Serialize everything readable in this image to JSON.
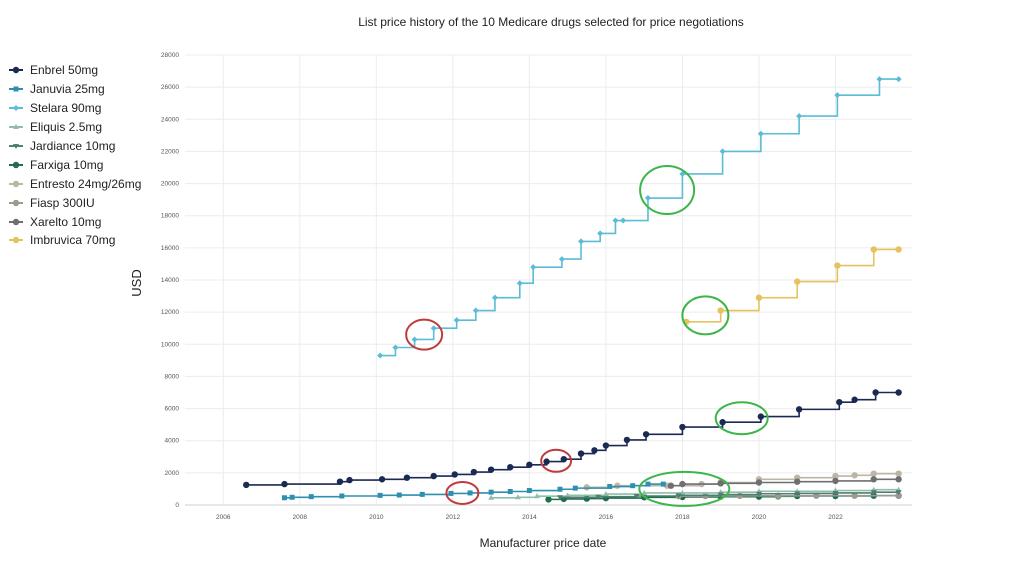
{
  "chart_data": {
    "type": "line",
    "step": "after",
    "title": "List price history of the 10 Medicare drugs selected for price negotiations",
    "xlabel": "Manufacturer price date",
    "ylabel": "USD",
    "xlim": [
      2005,
      2024
    ],
    "ylim": [
      0,
      28000
    ],
    "xticks": [
      "2006",
      "2008",
      "2010",
      "2012",
      "2014",
      "2016",
      "2018",
      "2020",
      "2022"
    ],
    "yticks": [
      "0",
      "2000",
      "4000",
      "6000",
      "8000",
      "10000",
      "12000",
      "14000",
      "16000",
      "18000",
      "20000",
      "22000",
      "24000",
      "26000",
      "28000"
    ],
    "grid": true,
    "legend_position": "left",
    "series": [
      {
        "name": "Enbrel 50mg",
        "color": "#1b2a52",
        "marker": "circle",
        "x": [
          2006.6,
          2007.6,
          2009.05,
          2009.3,
          2010.15,
          2010.8,
          2011.5,
          2012.05,
          2012.55,
          2013.0,
          2013.5,
          2014.0,
          2014.45,
          2014.9,
          2015.35,
          2015.7,
          2016.0,
          2016.55,
          2017.05,
          2018.0,
          2019.05,
          2020.05,
          2021.05,
          2022.1,
          2022.5,
          2023.05,
          2023.65
        ],
        "y": [
          1250,
          1300,
          1450,
          1550,
          1600,
          1700,
          1800,
          1900,
          2050,
          2200,
          2350,
          2500,
          2700,
          2850,
          3200,
          3400,
          3700,
          4050,
          4400,
          4850,
          5150,
          5500,
          5950,
          6400,
          6550,
          7000,
          7000
        ]
      },
      {
        "name": "Januvia 25mg",
        "color": "#2f8fb0",
        "marker": "square",
        "x": [
          2007.6,
          2007.8,
          2008.3,
          2009.1,
          2010.1,
          2010.6,
          2011.2,
          2011.95,
          2012.45,
          2013.0,
          2013.5,
          2014.0,
          2014.8,
          2015.2,
          2016.1,
          2016.7,
          2017.1,
          2017.5
        ],
        "y": [
          450,
          480,
          520,
          560,
          600,
          620,
          660,
          720,
          750,
          800,
          840,
          900,
          980,
          1050,
          1150,
          1200,
          1300,
          1300
        ]
      },
      {
        "name": "Stelara 90mg",
        "color": "#5bbcd6",
        "marker": "diamond",
        "x": [
          2010.1,
          2010.5,
          2011.0,
          2011.5,
          2012.1,
          2012.6,
          2013.1,
          2013.75,
          2014.1,
          2014.85,
          2015.35,
          2015.85,
          2016.25,
          2016.45,
          2017.1,
          2018.0,
          2019.05,
          2020.05,
          2021.05,
          2022.05,
          2023.15,
          2023.65
        ],
        "y": [
          9300,
          9800,
          10300,
          11000,
          11500,
          12100,
          12900,
          13800,
          14800,
          15300,
          16400,
          16900,
          17700,
          17700,
          19100,
          20600,
          22000,
          23100,
          24200,
          25500,
          26500,
          26500
        ]
      },
      {
        "name": "Eliquis 2.5mg",
        "color": "#8fbfa8",
        "marker": "triangle",
        "x": [
          2013.0,
          2013.7,
          2014.2,
          2015.0,
          2016.0,
          2017.0,
          2018.0,
          2019.0,
          2020.0,
          2021.0,
          2022.0,
          2023.0,
          2023.65
        ],
        "y": [
          450,
          480,
          550,
          600,
          680,
          750,
          750,
          800,
          850,
          850,
          900,
          950,
          950
        ]
      },
      {
        "name": "Jardiance 10mg",
        "color": "#4f7f72",
        "marker": "triangle-down",
        "x": [
          2014.8,
          2015.8,
          2016.8,
          2017.9,
          2019.0,
          2020.0,
          2021.0,
          2022.0,
          2023.0,
          2023.65
        ],
        "y": [
          480,
          520,
          560,
          600,
          650,
          700,
          720,
          750,
          800,
          800
        ]
      },
      {
        "name": "Farxiga 10mg",
        "color": "#1e6e4e",
        "marker": "circle",
        "x": [
          2014.5,
          2014.9,
          2015.5,
          2016.0,
          2017.0,
          2018.0,
          2019.0,
          2020.0,
          2020.5,
          2021.0,
          2022.0,
          2023.0,
          2023.65
        ],
        "y": [
          350,
          380,
          400,
          430,
          480,
          500,
          520,
          520,
          540,
          560,
          560,
          580,
          580
        ]
      },
      {
        "name": "Entresto 24mg/26mg",
        "color": "#bdb5a6",
        "marker": "circle",
        "x": [
          2015.5,
          2016.3,
          2017.6,
          2018.5,
          2019.0,
          2020.0,
          2021.0,
          2022.0,
          2022.5,
          2023.0,
          2023.65
        ],
        "y": [
          1100,
          1200,
          1200,
          1300,
          1400,
          1600,
          1700,
          1800,
          1850,
          1950,
          1950
        ]
      },
      {
        "name": "Fiasp 300IU",
        "color": "#9a9a8e",
        "marker": "circle",
        "x": [
          2017.9,
          2018.6,
          2019.5,
          2020.5,
          2021.5,
          2022.5,
          2023.65
        ],
        "y": [
          550,
          560,
          570,
          570,
          580,
          580,
          580
        ]
      },
      {
        "name": "Xarelto 10mg",
        "color": "#6f6f6f",
        "marker": "circle",
        "x": [
          2017.7,
          2018.0,
          2019.0,
          2020.0,
          2021.0,
          2022.0,
          2023.0,
          2023.65
        ],
        "y": [
          1200,
          1300,
          1350,
          1400,
          1450,
          1500,
          1600,
          1600
        ]
      },
      {
        "name": "Imbruvica 70mg",
        "color": "#e6c25e",
        "marker": "circle",
        "x": [
          2018.1,
          2019.0,
          2020.0,
          2021.0,
          2022.05,
          2023.0,
          2023.65
        ],
        "y": [
          11400,
          12100,
          12900,
          13900,
          14900,
          15900,
          15900
        ]
      }
    ],
    "annotations": [
      {
        "shape": "ellipse",
        "color": "#c0393b",
        "x": 2011.25,
        "y": 10600
      },
      {
        "shape": "ellipse",
        "color": "#c0393b",
        "x": 2012.25,
        "y": 750
      },
      {
        "shape": "ellipse",
        "color": "#c0393b",
        "x": 2014.7,
        "y": 2750
      },
      {
        "shape": "ellipse",
        "color": "#3cb54a",
        "x": 2017.6,
        "y": 19600
      },
      {
        "shape": "ellipse",
        "color": "#3cb54a",
        "x": 2018.6,
        "y": 11800
      },
      {
        "shape": "ellipse",
        "color": "#3cb54a",
        "x": 2019.55,
        "y": 5400
      },
      {
        "shape": "ellipse",
        "color": "#3cb54a",
        "x": 2018.05,
        "y": 1000
      }
    ]
  }
}
